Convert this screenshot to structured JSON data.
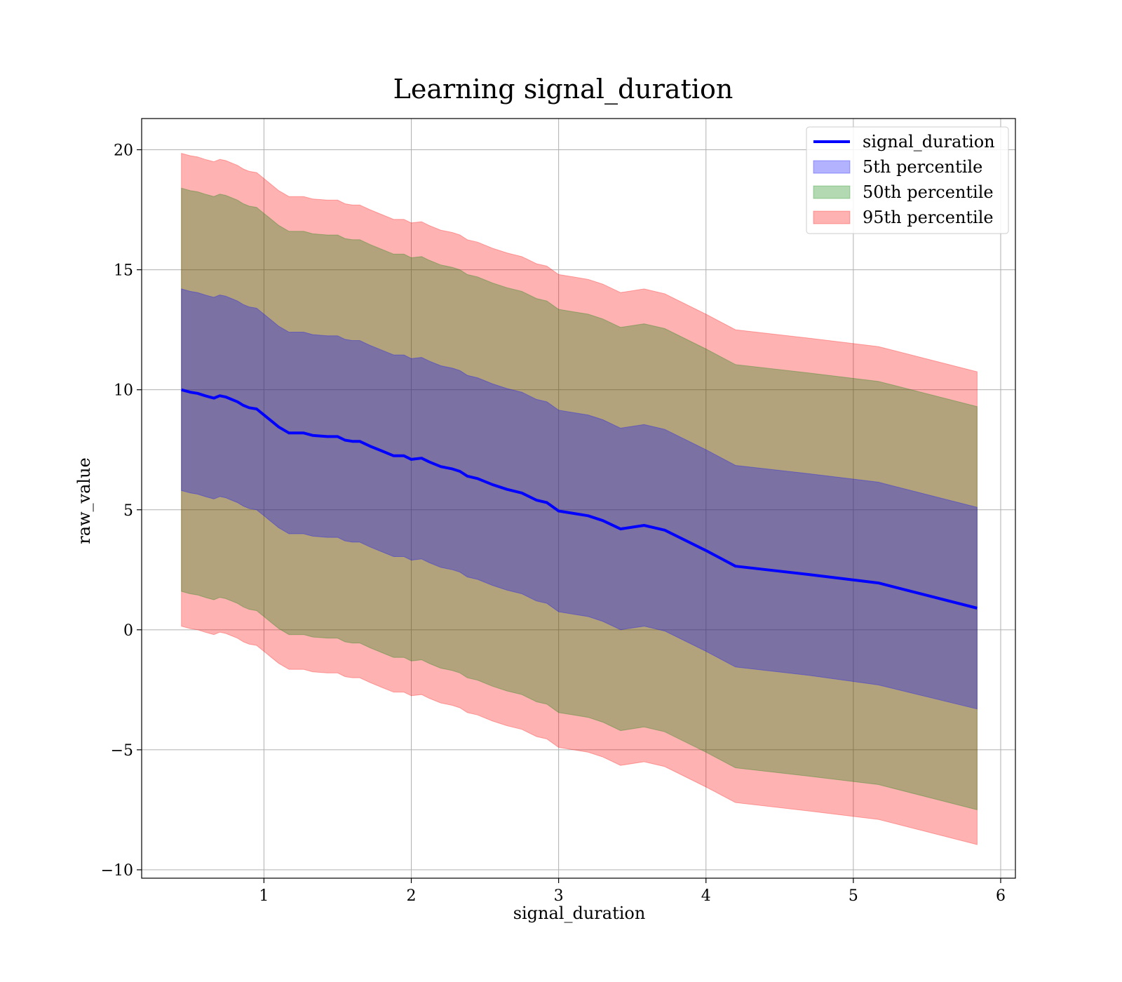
{
  "chart_data": {
    "type": "area",
    "title": "Learning signal_duration",
    "xlabel": "signal_duration",
    "ylabel": "raw_value",
    "xlim": [
      0.17,
      6.1
    ],
    "ylim": [
      -10.35,
      21.3
    ],
    "xticks": [
      1,
      2,
      3,
      4,
      5,
      6
    ],
    "yticks": [
      -10,
      -5,
      0,
      5,
      10,
      15,
      20
    ],
    "xtick_labels": [
      "1",
      "2",
      "3",
      "4",
      "5",
      "6"
    ],
    "ytick_labels": [
      "−10",
      "−5",
      "0",
      "5",
      "10",
      "15",
      "20"
    ],
    "grid": true,
    "legend_position": "top-right",
    "colors": {
      "line": "#0000ff",
      "p5": "#0000ff",
      "p50": "#008000",
      "p95": "#ff0000",
      "grid": "#b0b0b0"
    },
    "x": [
      0.44,
      0.5,
      0.55,
      0.6,
      0.63,
      0.66,
      0.7,
      0.74,
      0.78,
      0.82,
      0.86,
      0.9,
      0.95,
      1.0,
      1.05,
      1.1,
      1.17,
      1.27,
      1.33,
      1.43,
      1.5,
      1.55,
      1.6,
      1.65,
      1.72,
      1.8,
      1.88,
      1.95,
      2.0,
      2.07,
      2.12,
      2.2,
      2.28,
      2.33,
      2.38,
      2.45,
      2.55,
      2.65,
      2.75,
      2.85,
      2.92,
      3.0,
      3.1,
      3.2,
      3.3,
      3.42,
      3.58,
      3.72,
      4.0,
      4.2,
      4.7,
      5.17,
      5.84
    ],
    "series": [
      {
        "name": "signal_duration",
        "values": [
          10.0,
          9.9,
          9.85,
          9.75,
          9.7,
          9.65,
          9.75,
          9.7,
          9.6,
          9.5,
          9.35,
          9.25,
          9.2,
          8.95,
          8.7,
          8.45,
          8.2,
          8.2,
          8.1,
          8.05,
          8.05,
          7.9,
          7.85,
          7.85,
          7.65,
          7.45,
          7.25,
          7.25,
          7.1,
          7.15,
          7.0,
          6.8,
          6.7,
          6.6,
          6.4,
          6.3,
          6.05,
          5.85,
          5.7,
          5.4,
          5.3,
          4.95,
          4.85,
          4.75,
          4.55,
          4.2,
          4.35,
          4.15,
          3.3,
          2.65,
          2.3,
          1.95,
          0.9
        ]
      },
      {
        "name": "5th percentile",
        "lower": [
          5.8,
          5.7,
          5.65,
          5.55,
          5.5,
          5.45,
          5.55,
          5.5,
          5.4,
          5.3,
          5.15,
          5.05,
          5.0,
          4.75,
          4.5,
          4.25,
          4.0,
          4.0,
          3.9,
          3.85,
          3.85,
          3.7,
          3.65,
          3.65,
          3.45,
          3.25,
          3.05,
          3.05,
          2.9,
          2.95,
          2.8,
          2.6,
          2.5,
          2.4,
          2.2,
          2.1,
          1.85,
          1.65,
          1.5,
          1.2,
          1.1,
          0.75,
          0.65,
          0.55,
          0.35,
          0.0,
          0.15,
          -0.05,
          -0.9,
          -1.55,
          -1.9,
          -2.3,
          -3.3
        ],
        "upper": [
          14.2,
          14.1,
          14.05,
          13.95,
          13.9,
          13.85,
          13.95,
          13.9,
          13.8,
          13.7,
          13.55,
          13.45,
          13.4,
          13.15,
          12.9,
          12.65,
          12.4,
          12.4,
          12.3,
          12.25,
          12.25,
          12.1,
          12.05,
          12.05,
          11.85,
          11.65,
          11.45,
          11.45,
          11.3,
          11.35,
          11.2,
          11.0,
          10.9,
          10.8,
          10.6,
          10.5,
          10.25,
          10.05,
          9.9,
          9.6,
          9.5,
          9.15,
          9.05,
          8.95,
          8.75,
          8.4,
          8.55,
          8.35,
          7.5,
          6.85,
          6.5,
          6.15,
          5.1
        ]
      },
      {
        "name": "50th percentile",
        "lower": [
          1.6,
          1.5,
          1.45,
          1.35,
          1.3,
          1.25,
          1.35,
          1.3,
          1.2,
          1.1,
          0.95,
          0.85,
          0.8,
          0.55,
          0.3,
          0.05,
          -0.2,
          -0.2,
          -0.3,
          -0.35,
          -0.35,
          -0.5,
          -0.55,
          -0.55,
          -0.75,
          -0.95,
          -1.15,
          -1.15,
          -1.3,
          -1.25,
          -1.4,
          -1.6,
          -1.7,
          -1.8,
          -2.0,
          -2.1,
          -2.35,
          -2.55,
          -2.7,
          -3.0,
          -3.1,
          -3.45,
          -3.55,
          -3.65,
          -3.85,
          -4.2,
          -4.05,
          -4.25,
          -5.1,
          -5.75,
          -6.1,
          -6.45,
          -7.5
        ],
        "upper": [
          18.4,
          18.3,
          18.25,
          18.15,
          18.1,
          18.05,
          18.15,
          18.1,
          18.0,
          17.9,
          17.75,
          17.65,
          17.6,
          17.35,
          17.1,
          16.85,
          16.6,
          16.6,
          16.5,
          16.45,
          16.45,
          16.3,
          16.25,
          16.25,
          16.05,
          15.85,
          15.65,
          15.65,
          15.5,
          15.55,
          15.4,
          15.2,
          15.1,
          15.0,
          14.8,
          14.7,
          14.45,
          14.25,
          14.1,
          13.8,
          13.7,
          13.35,
          13.25,
          13.15,
          12.95,
          12.6,
          12.75,
          12.55,
          11.7,
          11.05,
          10.7,
          10.35,
          9.3
        ]
      },
      {
        "name": "95th percentile",
        "lower": [
          0.15,
          0.05,
          0.0,
          -0.1,
          -0.15,
          -0.2,
          -0.1,
          -0.15,
          -0.25,
          -0.35,
          -0.5,
          -0.6,
          -0.65,
          -0.9,
          -1.15,
          -1.4,
          -1.65,
          -1.65,
          -1.75,
          -1.8,
          -1.8,
          -1.95,
          -2.0,
          -2.0,
          -2.2,
          -2.4,
          -2.6,
          -2.6,
          -2.75,
          -2.7,
          -2.85,
          -3.05,
          -3.15,
          -3.25,
          -3.45,
          -3.55,
          -3.8,
          -4.0,
          -4.15,
          -4.45,
          -4.55,
          -4.9,
          -5.0,
          -5.1,
          -5.3,
          -5.65,
          -5.5,
          -5.7,
          -6.55,
          -7.2,
          -7.55,
          -7.9,
          -8.95
        ],
        "upper": [
          19.85,
          19.75,
          19.7,
          19.6,
          19.55,
          19.5,
          19.6,
          19.55,
          19.45,
          19.35,
          19.2,
          19.1,
          19.05,
          18.8,
          18.55,
          18.3,
          18.05,
          18.05,
          17.95,
          17.9,
          17.9,
          17.75,
          17.7,
          17.7,
          17.5,
          17.3,
          17.1,
          17.1,
          16.95,
          17.0,
          16.85,
          16.65,
          16.55,
          16.45,
          16.25,
          16.15,
          15.9,
          15.7,
          15.55,
          15.25,
          15.15,
          14.8,
          14.7,
          14.6,
          14.4,
          14.05,
          14.2,
          14.0,
          13.15,
          12.5,
          12.15,
          11.8,
          10.75
        ]
      }
    ],
    "legend": [
      "signal_duration",
      "5th percentile",
      "50th percentile",
      "95th percentile"
    ]
  }
}
